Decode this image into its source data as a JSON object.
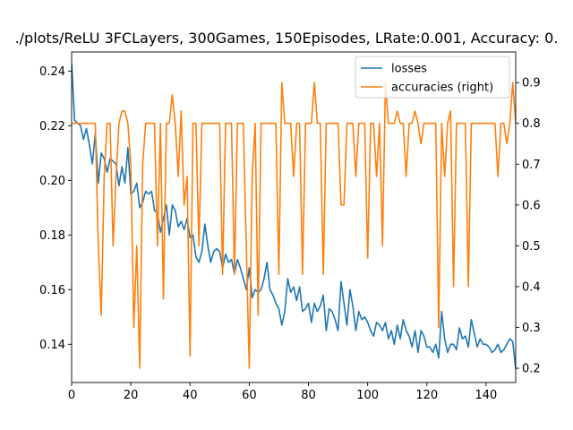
{
  "chart_data": {
    "type": "line",
    "title": "./plots/ReLU 3FCLayers, 300Games, 150Episodes, LRate:0.001, Accuracy: 0.",
    "xlabel": "",
    "ylabel": "",
    "xlim": [
      0,
      150
    ],
    "ylim_left": [
      0.126,
      0.247
    ],
    "ylim_right": [
      0.165,
      0.975
    ],
    "x_ticks": [
      0,
      20,
      40,
      60,
      80,
      100,
      120,
      140
    ],
    "y_ticks_left": [
      0.14,
      0.16,
      0.18,
      0.2,
      0.22,
      0.24
    ],
    "y_ticks_left_labels": [
      "0.14",
      "0.16",
      "0.18",
      "0.20",
      "0.22",
      "0.24"
    ],
    "y_ticks_right": [
      0.2,
      0.3,
      0.4,
      0.5,
      0.6,
      0.7,
      0.8,
      0.9
    ],
    "y_ticks_right_labels": [
      "0.2",
      "0.3",
      "0.4",
      "0.5",
      "0.6",
      "0.7",
      "0.8",
      "0.9"
    ],
    "legend_position": "top-right",
    "grid": false,
    "series": [
      {
        "name": "losses",
        "axis": "left",
        "color": "#1f77b4",
        "values": [
          0.243,
          0.222,
          0.221,
          0.22,
          0.215,
          0.219,
          0.213,
          0.206,
          0.217,
          0.199,
          0.21,
          0.208,
          0.203,
          0.208,
          0.207,
          0.206,
          0.198,
          0.205,
          0.199,
          0.212,
          0.195,
          0.196,
          0.199,
          0.19,
          0.192,
          0.196,
          0.195,
          0.196,
          0.189,
          0.188,
          0.181,
          0.186,
          0.191,
          0.18,
          0.191,
          0.189,
          0.183,
          0.185,
          0.182,
          0.186,
          0.179,
          0.18,
          0.172,
          0.17,
          0.174,
          0.184,
          0.176,
          0.17,
          0.174,
          0.175,
          0.174,
          0.168,
          0.173,
          0.17,
          0.171,
          0.166,
          0.171,
          0.168,
          0.164,
          0.16,
          0.168,
          0.157,
          0.16,
          0.159,
          0.16,
          0.164,
          0.17,
          0.16,
          0.158,
          0.155,
          0.153,
          0.147,
          0.152,
          0.164,
          0.159,
          0.161,
          0.156,
          0.161,
          0.152,
          0.153,
          0.155,
          0.148,
          0.155,
          0.152,
          0.154,
          0.158,
          0.145,
          0.153,
          0.152,
          0.149,
          0.145,
          0.163,
          0.155,
          0.147,
          0.16,
          0.154,
          0.145,
          0.152,
          0.149,
          0.15,
          0.148,
          0.145,
          0.143,
          0.148,
          0.147,
          0.145,
          0.148,
          0.142,
          0.145,
          0.14,
          0.147,
          0.142,
          0.149,
          0.145,
          0.143,
          0.139,
          0.145,
          0.137,
          0.145,
          0.143,
          0.139,
          0.139,
          0.137,
          0.14,
          0.135,
          0.152,
          0.142,
          0.137,
          0.14,
          0.14,
          0.138,
          0.146,
          0.142,
          0.143,
          0.139,
          0.149,
          0.144,
          0.139,
          0.142,
          0.14,
          0.14,
          0.139,
          0.137,
          0.138,
          0.14,
          0.137,
          0.138,
          0.14,
          0.142,
          0.141,
          0.131
        ]
      },
      {
        "name": "accuracies (right)",
        "axis": "right",
        "color": "#ff7f0e",
        "values": [
          0.8,
          0.8,
          0.8,
          0.8,
          0.8,
          0.8,
          0.8,
          0.8,
          0.8,
          0.5,
          0.33,
          0.67,
          0.8,
          0.8,
          0.5,
          0.67,
          0.8,
          0.83,
          0.83,
          0.8,
          0.7,
          0.3,
          0.5,
          0.2,
          0.7,
          0.8,
          0.8,
          0.8,
          0.8,
          0.5,
          0.8,
          0.37,
          0.8,
          0.8,
          0.87,
          0.8,
          0.67,
          0.83,
          0.6,
          0.67,
          0.23,
          0.8,
          0.8,
          0.5,
          0.8,
          0.8,
          0.8,
          0.8,
          0.8,
          0.8,
          0.8,
          0.43,
          0.8,
          0.8,
          0.8,
          0.43,
          0.8,
          0.8,
          0.8,
          0.5,
          0.2,
          0.67,
          0.8,
          0.33,
          0.8,
          0.8,
          0.8,
          0.8,
          0.8,
          0.8,
          0.43,
          0.9,
          0.8,
          0.8,
          0.8,
          0.67,
          0.8,
          0.8,
          0.43,
          0.8,
          0.8,
          0.8,
          0.9,
          0.8,
          0.8,
          0.43,
          0.8,
          0.8,
          0.8,
          0.8,
          0.8,
          0.6,
          0.6,
          0.8,
          0.8,
          0.8,
          0.67,
          0.8,
          0.8,
          0.8,
          0.47,
          0.8,
          0.8,
          0.67,
          0.8,
          0.5,
          0.9,
          0.8,
          0.8,
          0.8,
          0.83,
          0.8,
          0.8,
          0.67,
          0.8,
          0.8,
          0.83,
          0.8,
          0.75,
          0.8,
          0.8,
          0.8,
          0.8,
          0.8,
          0.3,
          0.8,
          0.67,
          0.8,
          0.83,
          0.4,
          0.8,
          0.8,
          0.8,
          0.8,
          0.4,
          0.8,
          0.8,
          0.8,
          0.8,
          0.8,
          0.8,
          0.8,
          0.8,
          0.8,
          0.67,
          0.8,
          0.8,
          0.75,
          0.8,
          0.9,
          0.8,
          0.8
        ]
      }
    ]
  }
}
